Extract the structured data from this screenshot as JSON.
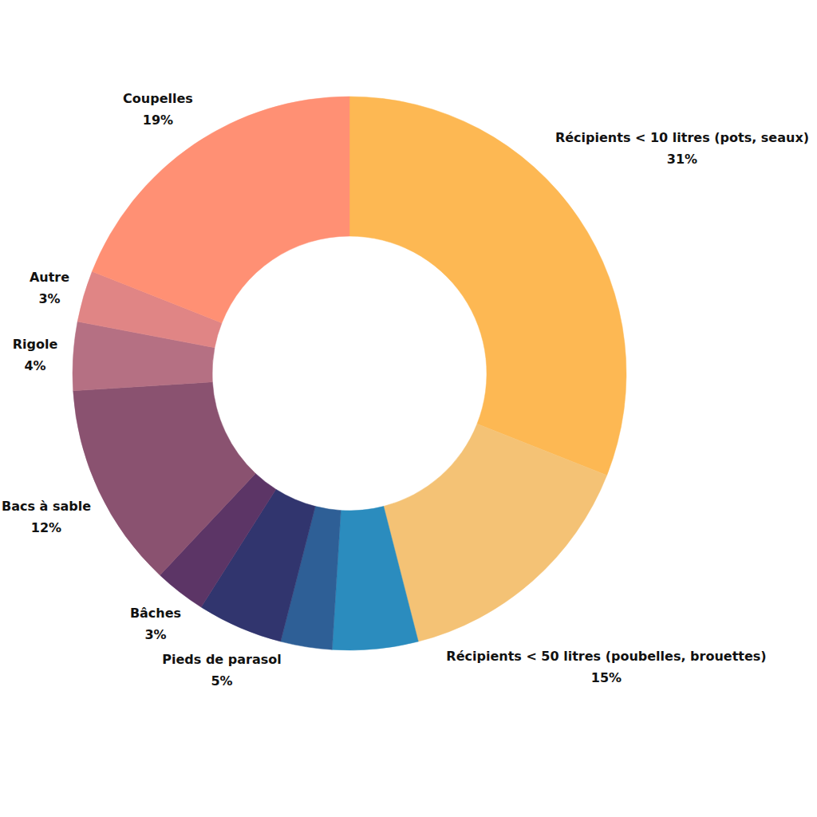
{
  "chart_data": {
    "type": "donut",
    "categories": [
      "Récipients < 10 litres (pots, seaux)",
      "Récipients < 50 litres (poubelles, brouettes)",
      null,
      null,
      "Pieds de parasol",
      "Bâches",
      "Bacs à sable",
      "Rigole",
      "Autre",
      "Coupelles"
    ],
    "values": [
      31,
      15,
      5,
      3,
      5,
      3,
      12,
      4,
      3,
      19
    ],
    "value_labels": [
      "31%",
      "15%",
      null,
      null,
      "5%",
      "3%",
      "12%",
      "4%",
      "3%",
      "19%"
    ],
    "colors": [
      "#fdb853",
      "#f4c275",
      "#2b8cbe",
      "#2e5f96",
      "#31356e",
      "#5c3566",
      "#8a5270",
      "#b57083",
      "#e08585",
      "#ff9074"
    ],
    "data_labels": true
  }
}
